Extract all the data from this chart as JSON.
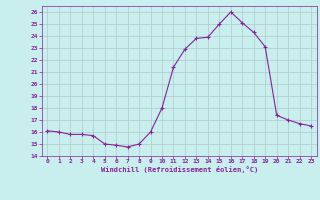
{
  "x": [
    0,
    1,
    2,
    3,
    4,
    5,
    6,
    7,
    8,
    9,
    10,
    11,
    12,
    13,
    14,
    15,
    16,
    17,
    18,
    19,
    20,
    21,
    22,
    23
  ],
  "y": [
    16.1,
    16.0,
    15.8,
    15.8,
    15.7,
    15.0,
    14.9,
    14.75,
    15.0,
    16.0,
    18.0,
    21.4,
    22.9,
    23.8,
    23.9,
    25.0,
    26.0,
    25.1,
    24.3,
    23.1,
    17.4,
    17.0,
    16.7,
    16.5
  ],
  "line_color": "#882299",
  "marker": "+",
  "marker_color": "#882299",
  "bg_color": "#c8eeee",
  "grid_color": "#b0c8c8",
  "xlabel": "Windchill (Refroidissement éolien,°C)",
  "xlabel_color": "#882299",
  "tick_color": "#882299",
  "spine_color": "#882299",
  "ylim": [
    14,
    26.5
  ],
  "xlim": [
    -0.5,
    23.5
  ],
  "yticks": [
    14,
    15,
    16,
    17,
    18,
    19,
    20,
    21,
    22,
    23,
    24,
    25,
    26
  ],
  "xticks": [
    0,
    1,
    2,
    3,
    4,
    5,
    6,
    7,
    8,
    9,
    10,
    11,
    12,
    13,
    14,
    15,
    16,
    17,
    18,
    19,
    20,
    21,
    22,
    23
  ]
}
